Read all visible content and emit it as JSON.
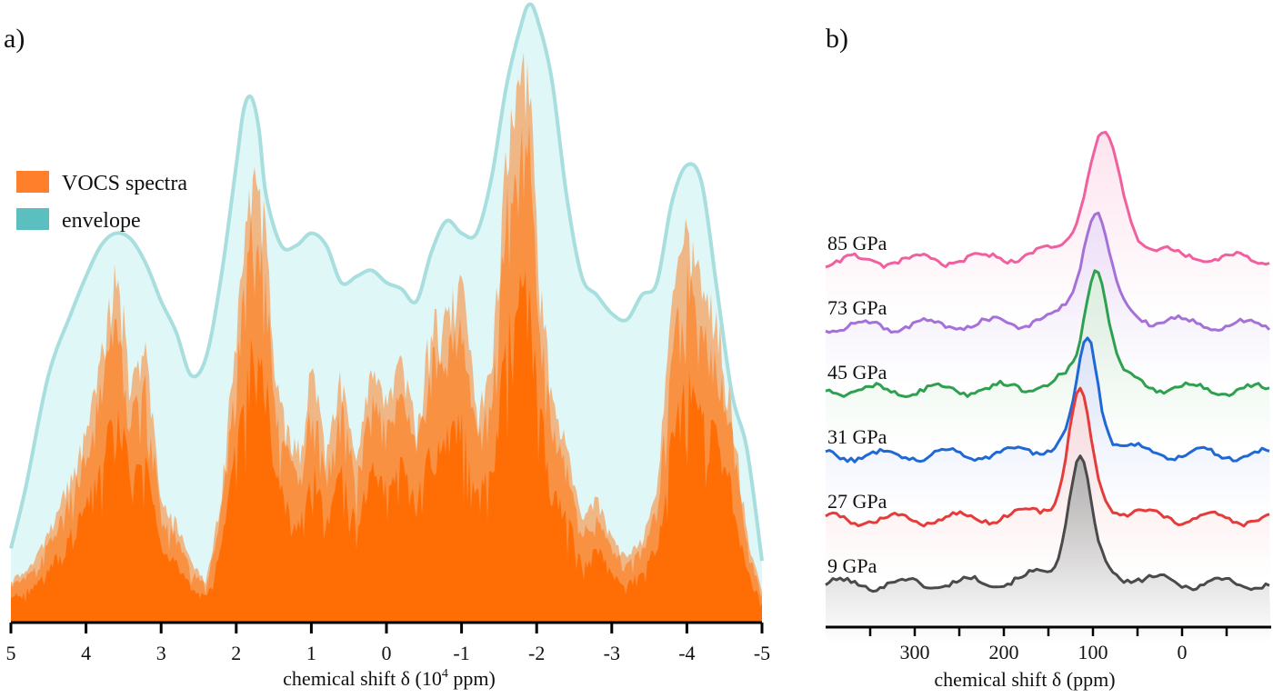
{
  "chart_data": [
    {
      "type": "area",
      "panel_label": "a)",
      "xlabel_main": "chemical shift δ (10",
      "xlabel_sup": "4",
      "xlabel_tail": " ppm)",
      "xlim": [
        5,
        -5
      ],
      "x_ticks": [
        "5",
        "4",
        "3",
        "2",
        "1",
        "0",
        "-1",
        "-2",
        "-3",
        "-4",
        "-5"
      ],
      "legend": [
        {
          "label": "VOCS spectra",
          "color": "#ff7f2a"
        },
        {
          "label": "envelope",
          "color": "#5bbfbf"
        }
      ],
      "legend_position": "top-left",
      "colors": {
        "envelope_fill": "#dff7f7",
        "envelope_line": "#a8dede",
        "vocs_light": "#f0b07c",
        "vocs_mid": "#fa8e3e",
        "vocs_dark": "#ff6a00"
      },
      "series": [
        {
          "name": "envelope",
          "x": [
            5.0,
            4.8,
            4.5,
            4.2,
            4.0,
            3.8,
            3.6,
            3.4,
            3.2,
            3.0,
            2.8,
            2.6,
            2.4,
            2.2,
            2.0,
            1.9,
            1.8,
            1.7,
            1.6,
            1.4,
            1.2,
            1.0,
            0.8,
            0.6,
            0.4,
            0.2,
            0.0,
            -0.2,
            -0.4,
            -0.6,
            -0.8,
            -1.0,
            -1.2,
            -1.4,
            -1.6,
            -1.8,
            -1.9,
            -2.0,
            -2.2,
            -2.4,
            -2.6,
            -2.8,
            -3.0,
            -3.2,
            -3.4,
            -3.6,
            -3.8,
            -4.0,
            -4.2,
            -4.4,
            -4.6,
            -4.8,
            -5.0
          ],
          "values": [
            0.12,
            0.22,
            0.4,
            0.5,
            0.56,
            0.61,
            0.63,
            0.62,
            0.58,
            0.52,
            0.47,
            0.4,
            0.43,
            0.56,
            0.74,
            0.83,
            0.85,
            0.8,
            0.69,
            0.61,
            0.61,
            0.63,
            0.61,
            0.55,
            0.56,
            0.57,
            0.55,
            0.54,
            0.52,
            0.6,
            0.65,
            0.63,
            0.63,
            0.72,
            0.87,
            0.97,
            1.0,
            0.98,
            0.88,
            0.69,
            0.56,
            0.53,
            0.5,
            0.49,
            0.53,
            0.55,
            0.68,
            0.74,
            0.71,
            0.54,
            0.37,
            0.28,
            0.1
          ]
        },
        {
          "name": "VOCS spectra",
          "x": [
            5.0,
            4.7,
            4.4,
            4.2,
            4.0,
            3.8,
            3.6,
            3.5,
            3.4,
            3.2,
            3.0,
            2.8,
            2.6,
            2.4,
            2.2,
            2.0,
            1.9,
            1.8,
            1.7,
            1.6,
            1.5,
            1.3,
            1.1,
            1.0,
            0.8,
            0.6,
            0.4,
            0.2,
            0.0,
            -0.2,
            -0.4,
            -0.6,
            -0.8,
            -1.0,
            -1.2,
            -1.4,
            -1.6,
            -1.7,
            -1.8,
            -1.9,
            -2.0,
            -2.2,
            -2.4,
            -2.6,
            -2.8,
            -3.0,
            -3.2,
            -3.4,
            -3.6,
            -3.8,
            -3.9,
            -4.0,
            -4.2,
            -4.4,
            -4.6,
            -4.8,
            -5.0
          ],
          "values": [
            0.07,
            0.1,
            0.18,
            0.25,
            0.32,
            0.45,
            0.6,
            0.52,
            0.4,
            0.46,
            0.2,
            0.17,
            0.1,
            0.07,
            0.21,
            0.5,
            0.63,
            0.76,
            0.72,
            0.67,
            0.42,
            0.32,
            0.29,
            0.45,
            0.28,
            0.42,
            0.27,
            0.43,
            0.37,
            0.44,
            0.33,
            0.51,
            0.52,
            0.58,
            0.36,
            0.42,
            0.8,
            0.86,
            0.93,
            0.92,
            0.67,
            0.37,
            0.3,
            0.17,
            0.21,
            0.14,
            0.11,
            0.14,
            0.22,
            0.53,
            0.62,
            0.68,
            0.56,
            0.52,
            0.37,
            0.15,
            0.05
          ]
        }
      ]
    },
    {
      "type": "line",
      "panel_label": "b)",
      "xlabel": "chemical shift δ (ppm)",
      "xlim": [
        400,
        -100
      ],
      "x_ticks": [
        "300",
        "200",
        "100",
        "0"
      ],
      "x_tick_values": [
        300,
        200,
        100,
        0
      ],
      "series": [
        {
          "name": "85 GPa",
          "color": "#f0609e",
          "fill": "#fde3ee",
          "offset": 5,
          "peak_ppm": 88,
          "peak_height": 2.9,
          "peak_width": 18
        },
        {
          "name": "73 GPa",
          "color": "#a571d9",
          "fill": "#ece0f8",
          "offset": 4,
          "peak_ppm": 97,
          "peak_height": 2.7,
          "peak_width": 14
        },
        {
          "name": "45 GPa",
          "color": "#2ea050",
          "fill": "#dbf0dd",
          "offset": 3,
          "peak_ppm": 96,
          "peak_height": 2.9,
          "peak_width": 12
        },
        {
          "name": "31 GPa",
          "color": "#1f68d6",
          "fill": "#dde4fa",
          "offset": 2,
          "peak_ppm": 106,
          "peak_height": 2.7,
          "peak_width": 11
        },
        {
          "name": "27 GPa",
          "color": "#e53b3b",
          "fill": "#fadcdc",
          "offset": 1,
          "peak_ppm": 115,
          "peak_height": 2.9,
          "peak_width": 12
        },
        {
          "name": "9 GPa",
          "color": "#4a4a4a",
          "fill": "#b0b0b0",
          "offset": 0,
          "peak_ppm": 115,
          "peak_height": 2.9,
          "peak_width": 12
        }
      ]
    }
  ]
}
